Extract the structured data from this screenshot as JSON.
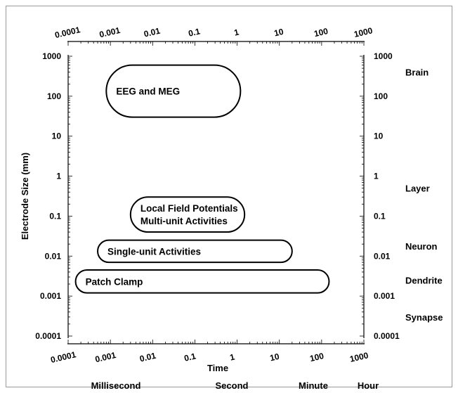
{
  "chart_data": {
    "type": "diagram",
    "x_scale": "log",
    "y_scale": "log",
    "xlim": [
      0.0001,
      1000
    ],
    "ylim": [
      0.0001,
      1000
    ],
    "x_tick_labels": [
      "0.0001",
      "0.001",
      "0.01",
      "0.1",
      "1",
      "10",
      "100",
      "1000"
    ],
    "y_tick_labels": [
      "1000",
      "100",
      "10",
      "1",
      "0.1",
      "0.01",
      "0.001",
      "0.0001"
    ],
    "xlabel": "Time",
    "ylabel": "Electrode Size (mm)",
    "techniques": [
      {
        "label_lines": [
          "EEG and MEG"
        ],
        "time_range": [
          0.0008,
          1.2
        ],
        "size_range": [
          30,
          600
        ]
      },
      {
        "label_lines": [
          "Local Field Potentials",
          "Multi-unit Activities"
        ],
        "time_range": [
          0.003,
          1.5
        ],
        "size_range": [
          0.04,
          0.3
        ]
      },
      {
        "label_lines": [
          "Single-unit Activities"
        ],
        "time_range": [
          0.0005,
          20
        ],
        "size_range": [
          0.007,
          0.025
        ]
      },
      {
        "label_lines": [
          "Patch Clamp"
        ],
        "time_range": [
          0.00015,
          150
        ],
        "size_range": [
          0.0012,
          0.0045
        ]
      }
    ],
    "spatial_scales": [
      {
        "label": "Brain",
        "size": 400
      },
      {
        "label": "Layer",
        "size": 0.5
      },
      {
        "label": "Neuron",
        "size": 0.018
      },
      {
        "label": "Dendrite",
        "size": 0.0025
      },
      {
        "label": "Synapse",
        "size": 0.0003
      }
    ],
    "time_scales": [
      {
        "label": "Millisecond",
        "time": 0.001
      },
      {
        "label": "Second",
        "time": 1
      },
      {
        "label": "Minute",
        "time": 60
      },
      {
        "label": "Hour",
        "time": 3600
      }
    ]
  }
}
